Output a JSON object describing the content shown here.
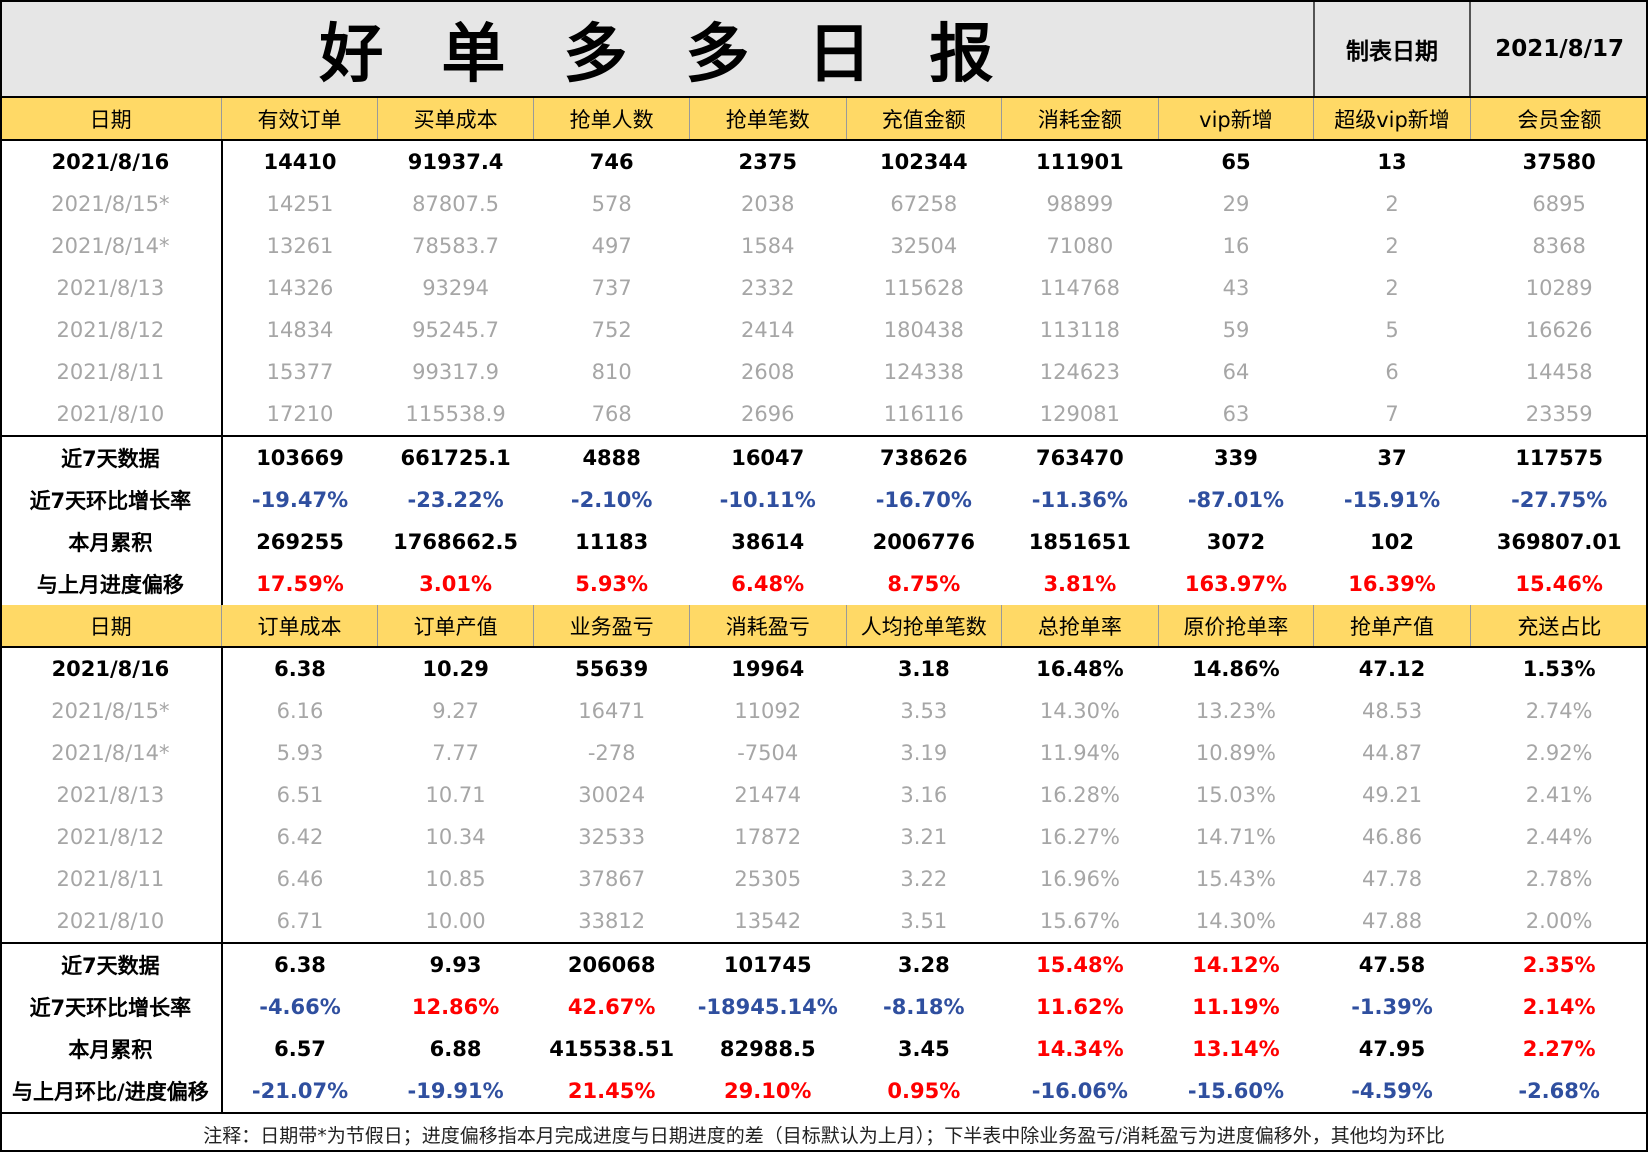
{
  "title": "好单多多日报",
  "made_label": "制表日期",
  "made_date": "2021/8/17",
  "section1": {
    "headers": [
      "日期",
      "有效订单",
      "买单成本",
      "抢单人数",
      "抢单笔数",
      "充值金额",
      "消耗金额",
      "vip新增",
      "超级vip新增",
      "会员金额"
    ],
    "rows": [
      {
        "type": "today",
        "cells": [
          "2021/8/16",
          "14410",
          "91937.4",
          "746",
          "2375",
          "102344",
          "111901",
          "65",
          "13",
          "37580"
        ]
      },
      {
        "type": "hist",
        "cells": [
          "2021/8/15*",
          "14251",
          "87807.5",
          "578",
          "2038",
          "67258",
          "98899",
          "29",
          "2",
          "6895"
        ]
      },
      {
        "type": "hist",
        "cells": [
          "2021/8/14*",
          "13261",
          "78583.7",
          "497",
          "1584",
          "32504",
          "71080",
          "16",
          "2",
          "8368"
        ]
      },
      {
        "type": "hist",
        "cells": [
          "2021/8/13",
          "14326",
          "93294",
          "737",
          "2332",
          "115628",
          "114768",
          "43",
          "2",
          "10289"
        ]
      },
      {
        "type": "hist",
        "cells": [
          "2021/8/12",
          "14834",
          "95245.7",
          "752",
          "2414",
          "180438",
          "113118",
          "59",
          "5",
          "16626"
        ]
      },
      {
        "type": "hist",
        "cells": [
          "2021/8/11",
          "15377",
          "99317.9",
          "810",
          "2608",
          "124338",
          "124623",
          "64",
          "6",
          "14458"
        ]
      },
      {
        "type": "hist",
        "cells": [
          "2021/8/10",
          "17210",
          "115538.9",
          "768",
          "2696",
          "116116",
          "129081",
          "63",
          "7",
          "23359"
        ]
      },
      {
        "type": "sum",
        "cells": [
          "近7天数据",
          "103669",
          "661725.1",
          "4888",
          "16047",
          "738626",
          "763470",
          "339",
          "37",
          "117575"
        ]
      },
      {
        "type": "sum",
        "cells": [
          "近7天环比增长率",
          "-19.47%",
          "-23.22%",
          "-2.10%",
          "-10.11%",
          "-16.70%",
          "-11.36%",
          "-87.01%",
          "-15.91%",
          "-27.75%"
        ]
      },
      {
        "type": "sum",
        "cells": [
          "本月累积",
          "269255",
          "1768662.5",
          "11183",
          "38614",
          "2006776",
          "1851651",
          "3072",
          "102",
          "369807.01"
        ]
      },
      {
        "type": "sum",
        "cells": [
          "与上月进度偏移",
          "17.59%",
          "3.01%",
          "5.93%",
          "6.48%",
          "8.75%",
          "3.81%",
          "163.97%",
          "16.39%",
          "15.46%"
        ]
      }
    ]
  },
  "section2": {
    "headers": [
      "日期",
      "订单成本",
      "订单产值",
      "业务盈亏",
      "消耗盈亏",
      "人均抢单笔数",
      "总抢单率",
      "原价抢单率",
      "抢单产值",
      "充送占比"
    ],
    "rows": [
      {
        "type": "today",
        "cells": [
          "2021/8/16",
          "6.38",
          "10.29",
          "55639",
          "19964",
          "3.18",
          "16.48%",
          "14.86%",
          "47.12",
          "1.53%"
        ]
      },
      {
        "type": "hist",
        "cells": [
          "2021/8/15*",
          "6.16",
          "9.27",
          "16471",
          "11092",
          "3.53",
          "14.30%",
          "13.23%",
          "48.53",
          "2.74%"
        ]
      },
      {
        "type": "hist",
        "cells": [
          "2021/8/14*",
          "5.93",
          "7.77",
          "-278",
          "-7504",
          "3.19",
          "11.94%",
          "10.89%",
          "44.87",
          "2.92%"
        ]
      },
      {
        "type": "hist",
        "cells": [
          "2021/8/13",
          "6.51",
          "10.71",
          "30024",
          "21474",
          "3.16",
          "16.28%",
          "15.03%",
          "49.21",
          "2.41%"
        ]
      },
      {
        "type": "hist",
        "cells": [
          "2021/8/12",
          "6.42",
          "10.34",
          "32533",
          "17872",
          "3.21",
          "16.27%",
          "14.71%",
          "46.86",
          "2.44%"
        ]
      },
      {
        "type": "hist",
        "cells": [
          "2021/8/11",
          "6.46",
          "10.85",
          "37867",
          "25305",
          "3.22",
          "16.96%",
          "15.43%",
          "47.78",
          "2.78%"
        ]
      },
      {
        "type": "hist",
        "cells": [
          "2021/8/10",
          "6.71",
          "10.00",
          "33812",
          "13542",
          "3.51",
          "15.67%",
          "14.30%",
          "47.88",
          "2.00%"
        ]
      },
      {
        "type": "sum",
        "cells": [
          "近7天数据",
          "6.38",
          "9.93",
          "206068",
          "101745",
          "3.28",
          "15.48%",
          "14.12%",
          "47.58",
          "2.35%"
        ]
      },
      {
        "type": "sum",
        "cells": [
          "近7天环比增长率",
          "-4.66%",
          "12.86%",
          "42.67%",
          "-18945.14%",
          "-8.18%",
          "11.62%",
          "11.19%",
          "-1.39%",
          "2.14%"
        ]
      },
      {
        "type": "sum",
        "cells": [
          "本月累积",
          "6.57",
          "6.88",
          "415538.51",
          "82988.5",
          "3.45",
          "14.34%",
          "13.14%",
          "47.95",
          "2.27%"
        ]
      },
      {
        "type": "sum",
        "cells": [
          "与上月环比/进度偏移",
          "-21.07%",
          "-19.91%",
          "21.45%",
          "29.10%",
          "0.95%",
          "-16.06%",
          "-15.60%",
          "-4.59%",
          "-2.68%"
        ]
      }
    ]
  },
  "colors": {
    "header_bg": "#ffd966",
    "title_bg": "#e6e6e6",
    "history_text": "#a6a6a6",
    "positive": "#ff0000",
    "negative": "#2f4f9f"
  },
  "note": "注释：日期带*为节假日；进度偏移指本月完成进度与日期进度的差（目标默认为上月）；下半表中除业务盈亏/消耗盈亏为进度偏移外，其他均为环比"
}
